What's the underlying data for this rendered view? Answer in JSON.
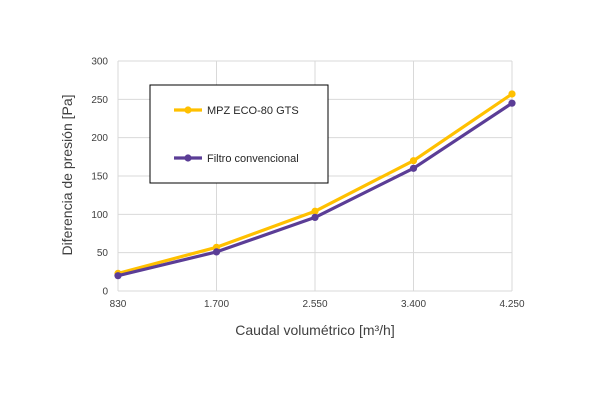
{
  "chart_data": {
    "type": "line",
    "xlabel": "Caudal volumétrico [m³/h]",
    "ylabel": "Diferencia de presión [Pa]",
    "categories": [
      "830",
      "1.700",
      "2.550",
      "3.400",
      "4.250"
    ],
    "yticks": [
      "0",
      "50",
      "100",
      "150",
      "200",
      "250",
      "300"
    ],
    "ylim": [
      0,
      300
    ],
    "grid": "vertical and horizontal",
    "legend_position": "upper-left inside plot",
    "series": [
      {
        "name": "MPZ ECO-80 GTS",
        "color": "#FFC000",
        "values": [
          23,
          57,
          104,
          170,
          257
        ]
      },
      {
        "name": "Filtro convencional",
        "color": "#5B3D96",
        "values": [
          20,
          51,
          96,
          160,
          245
        ]
      }
    ]
  }
}
